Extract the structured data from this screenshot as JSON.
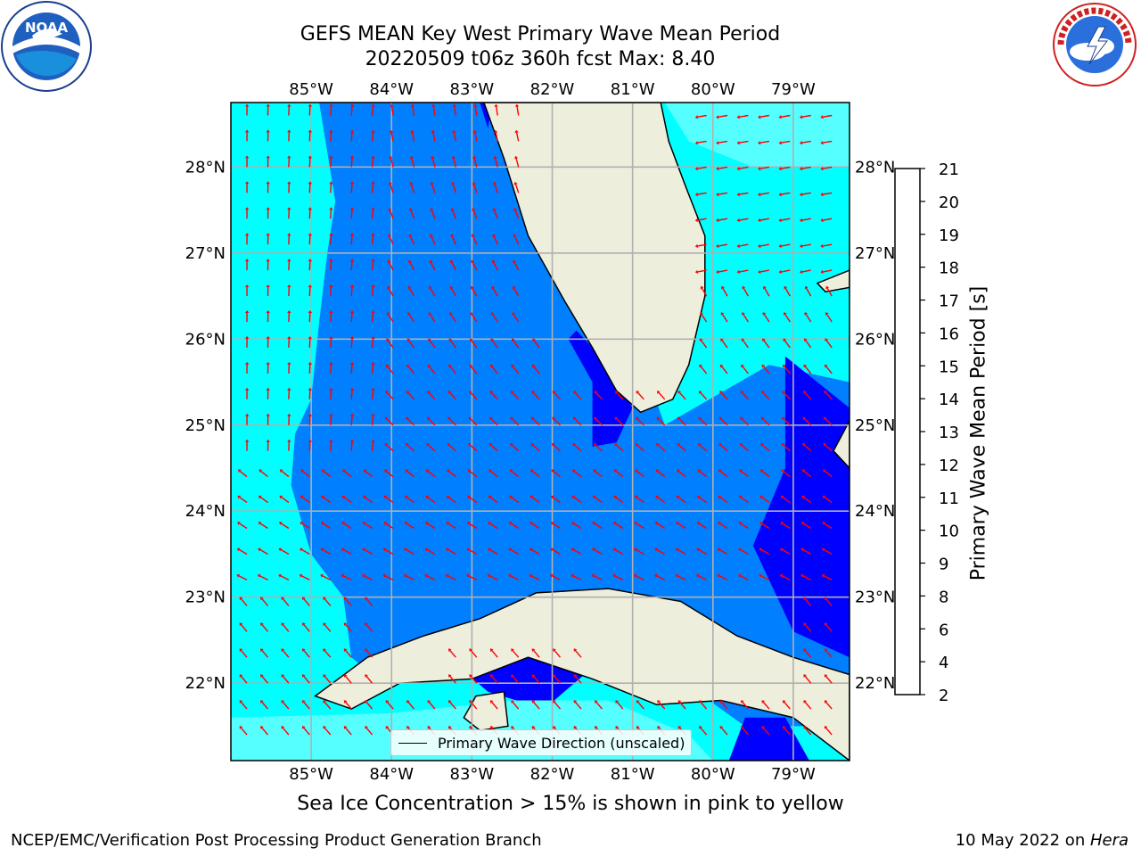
{
  "title": {
    "line1": "GEFS MEAN Key West Primary Wave Mean Period",
    "line2": "20220509 t06z 360h fcst   Max: 8.40"
  },
  "logos": {
    "left": {
      "name": "noaa",
      "text": "NOAA",
      "ring_text": "NATIONAL OCEANIC AND ATMOSPHERIC ADMINISTRATION · U.S. DEPARTMENT OF COMMERCE"
    },
    "right": {
      "name": "national-weather-service",
      "ring_text": "NATIONAL WEATHER SERVICE"
    }
  },
  "map": {
    "lon_ticks": [
      "85°W",
      "84°W",
      "83°W",
      "82°W",
      "81°W",
      "80°W",
      "79°W"
    ],
    "lat_ticks": [
      "28°N",
      "27°N",
      "26°N",
      "25°N",
      "24°N",
      "23°N",
      "22°N"
    ],
    "lon_range": [
      -86.0,
      -78.3
    ],
    "lat_range": [
      21.1,
      28.75
    ],
    "legend_label": "Primary Wave Direction (unscaled)",
    "colors": {
      "land": "#eeeedd",
      "arrow": "#ff0000",
      "grid": "#b0b0b0"
    }
  },
  "colorbar": {
    "label": "Primary Wave Mean Period [s]",
    "ticks": [
      "2",
      "4",
      "6",
      "8",
      "9",
      "10",
      "11",
      "12",
      "13",
      "14",
      "15",
      "16",
      "17",
      "18",
      "19",
      "20",
      "21"
    ],
    "colors": [
      "#0000ff",
      "#007fff",
      "#00ffff",
      "#55ffff",
      "#99ffee",
      "#55ee55",
      "#22ee22",
      "#33dd00",
      "#88dd00",
      "#ccee00",
      "#eeff00",
      "#ffff00",
      "#ffcc00",
      "#ff9900",
      "#ff6600",
      "#ff3300",
      "#ff0000"
    ]
  },
  "chart_data": {
    "type": "heatmap",
    "title": "GEFS MEAN Key West Primary Wave Mean Period",
    "subtitle": "20220509 t06z 360h fcst   Max: 8.40",
    "variable": "Primary Wave Mean Period [s]",
    "max": 8.4,
    "x": {
      "label": "",
      "ticks": [
        "85°W",
        "84°W",
        "83°W",
        "82°W",
        "81°W",
        "80°W",
        "79°W"
      ],
      "range": [
        -86.0,
        -78.3
      ]
    },
    "y": {
      "label": "",
      "ticks": [
        "22°N",
        "23°N",
        "24°N",
        "25°N",
        "26°N",
        "27°N",
        "28°N"
      ],
      "range": [
        21.1,
        28.75
      ]
    },
    "color_levels": [
      2,
      4,
      6,
      8,
      9,
      10,
      11,
      12,
      13,
      14,
      15,
      16,
      17,
      18,
      19,
      20,
      21
    ],
    "grid": true,
    "legend": {
      "placement": "bottom-center",
      "entries": [
        "Primary Wave Direction (unscaled)"
      ]
    }
  },
  "notes": {
    "ice": "Sea Ice Concentration > 15% is shown in pink to yellow"
  },
  "footer": {
    "left": "NCEP/EMC/Verification Post Processing Product Generation Branch",
    "right_date": "10 May 2022 on ",
    "right_machine": "Hera"
  }
}
